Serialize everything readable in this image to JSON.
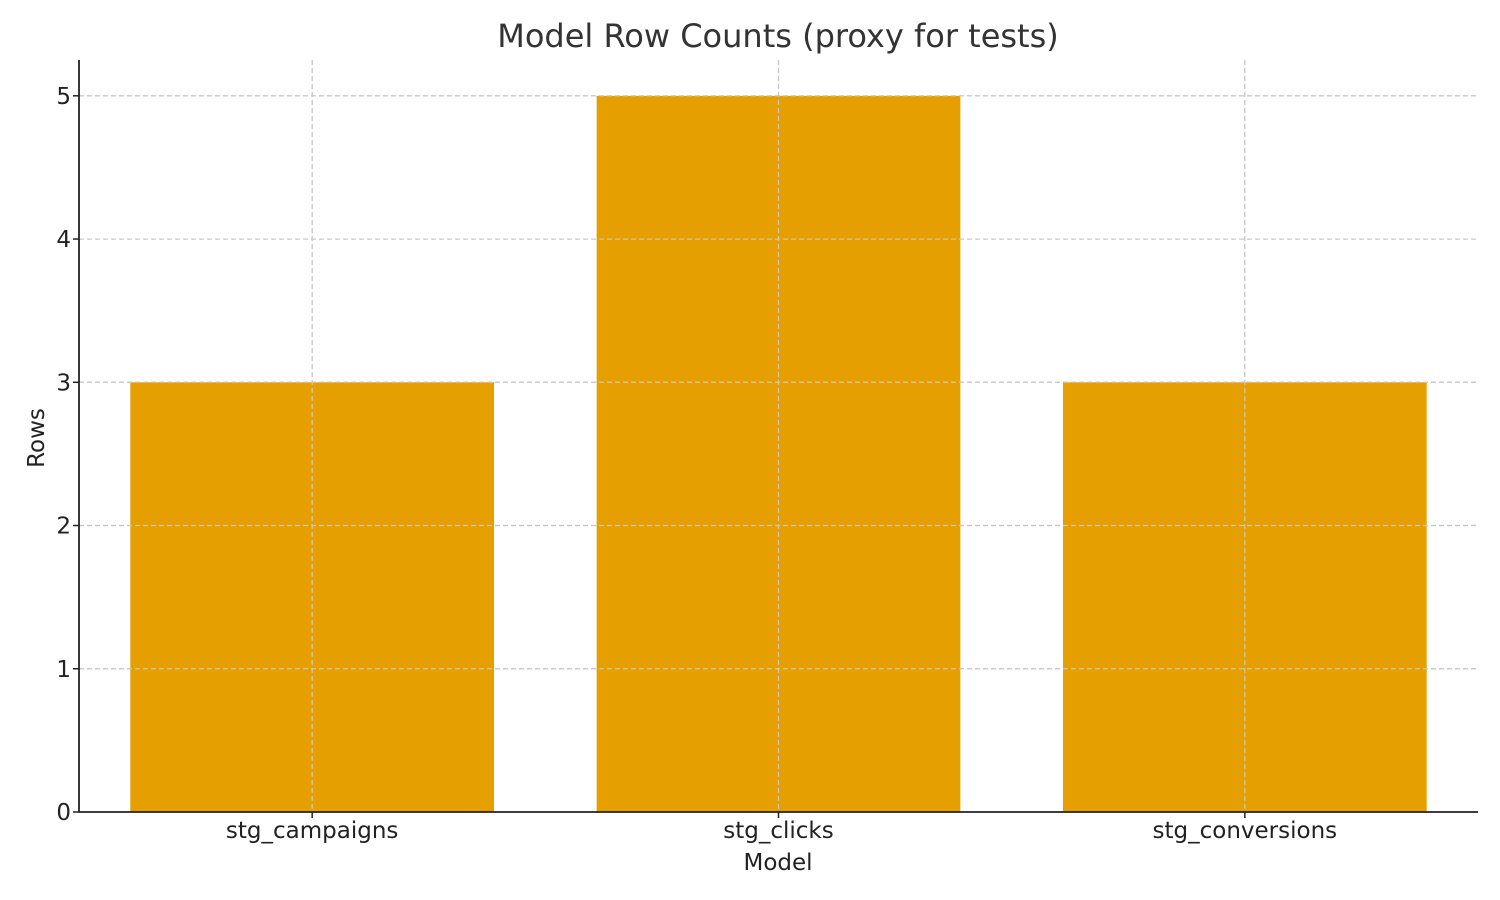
{
  "chart_data": {
    "type": "bar",
    "title": "Model Row Counts (proxy for tests)",
    "xlabel": "Model",
    "ylabel": "Rows",
    "categories": [
      "stg_campaigns",
      "stg_clicks",
      "stg_conversions"
    ],
    "values": [
      3,
      5,
      3
    ],
    "ylim": [
      0,
      5.25
    ],
    "yticks": [
      0,
      1,
      2,
      3,
      4,
      5
    ],
    "grid": true,
    "bar_color": "#e5a000"
  }
}
